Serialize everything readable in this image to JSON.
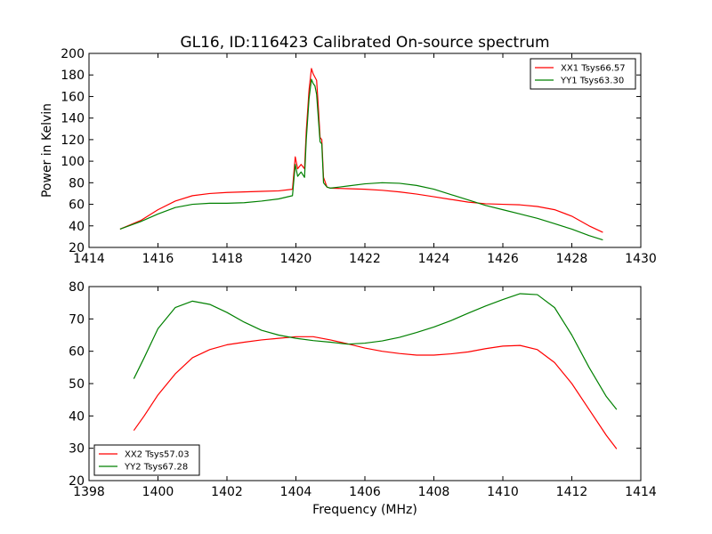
{
  "title": "GL16, ID:116423 Calibrated On-source spectrum",
  "chart_data": [
    {
      "type": "line",
      "title": "GL16, ID:116423 Calibrated On-source spectrum",
      "xlabel": "",
      "ylabel": "Power in Kelvin",
      "xlim": [
        1414,
        1430
      ],
      "ylim": [
        20,
        200
      ],
      "xticks": [
        1414,
        1416,
        1418,
        1420,
        1422,
        1424,
        1426,
        1428,
        1430
      ],
      "yticks": [
        20,
        40,
        60,
        80,
        100,
        120,
        140,
        160,
        180,
        200
      ],
      "grid": false,
      "legend_position": "top-right",
      "series": [
        {
          "name": "XX1 Tsys66.57",
          "color": "#ff0000",
          "x": [
            1414.9,
            1415.5,
            1416.0,
            1416.5,
            1417.0,
            1417.5,
            1418.0,
            1418.5,
            1419.0,
            1419.5,
            1419.9,
            1419.98,
            1420.05,
            1420.15,
            1420.25,
            1420.3,
            1420.38,
            1420.45,
            1420.5,
            1420.55,
            1420.6,
            1420.65,
            1420.7,
            1420.75,
            1420.8,
            1420.9,
            1421.0,
            1421.5,
            1422.0,
            1422.5,
            1423.0,
            1423.5,
            1424.0,
            1424.5,
            1425.0,
            1425.5,
            1426.0,
            1426.5,
            1427.0,
            1427.5,
            1428.0,
            1428.5,
            1428.9
          ],
          "values": [
            37,
            45,
            55,
            63,
            68,
            70,
            71,
            71.5,
            72,
            72.5,
            74,
            104,
            93,
            97,
            93,
            128,
            166,
            186,
            181,
            178,
            175,
            150,
            122,
            120,
            85,
            76,
            75,
            74.5,
            74,
            73,
            71.5,
            69.5,
            67,
            64.5,
            62,
            60.5,
            60,
            59.5,
            58,
            55,
            49,
            40,
            34
          ]
        },
        {
          "name": "YY1 Tsys63.30",
          "color": "#008000",
          "x": [
            1414.9,
            1415.5,
            1416.0,
            1416.5,
            1417.0,
            1417.5,
            1418.0,
            1418.5,
            1419.0,
            1419.5,
            1419.9,
            1419.98,
            1420.05,
            1420.15,
            1420.25,
            1420.3,
            1420.38,
            1420.45,
            1420.5,
            1420.55,
            1420.6,
            1420.65,
            1420.7,
            1420.75,
            1420.8,
            1420.9,
            1421.0,
            1421.5,
            1422.0,
            1422.5,
            1423.0,
            1423.5,
            1424.0,
            1424.5,
            1425.0,
            1425.5,
            1426.0,
            1426.5,
            1427.0,
            1427.5,
            1428.0,
            1428.5,
            1428.9
          ],
          "values": [
            37,
            44,
            51,
            57,
            60,
            61,
            61,
            61.5,
            63,
            65,
            68,
            97,
            86,
            90,
            85,
            120,
            158,
            176,
            172,
            170,
            162,
            140,
            118,
            116,
            80,
            76,
            75,
            77,
            79,
            80,
            79.5,
            77.5,
            74,
            69,
            64,
            59,
            55,
            51,
            47,
            42,
            37,
            31,
            27
          ]
        }
      ]
    },
    {
      "type": "line",
      "title": "",
      "xlabel": "Frequency (MHz)",
      "ylabel": "",
      "xlim": [
        1398,
        1414
      ],
      "ylim": [
        20,
        80
      ],
      "xticks": [
        1398,
        1400,
        1402,
        1404,
        1406,
        1408,
        1410,
        1412,
        1414
      ],
      "yticks": [
        20,
        30,
        40,
        50,
        60,
        70,
        80
      ],
      "grid": false,
      "legend_position": "bottom-left",
      "series": [
        {
          "name": "XX2 Tsys57.03",
          "color": "#ff0000",
          "x": [
            1399.3,
            1399.6,
            1400.0,
            1400.5,
            1401.0,
            1401.5,
            1402.0,
            1402.5,
            1403.0,
            1403.5,
            1404.0,
            1404.5,
            1405.0,
            1405.5,
            1406.0,
            1406.5,
            1407.0,
            1407.5,
            1408.0,
            1408.5,
            1409.0,
            1409.5,
            1410.0,
            1410.5,
            1411.0,
            1411.5,
            1412.0,
            1412.5,
            1413.0,
            1413.3
          ],
          "values": [
            35.5,
            40,
            46.5,
            53,
            58,
            60.5,
            62,
            62.8,
            63.5,
            64,
            64.5,
            64.5,
            63.5,
            62.3,
            61,
            60,
            59.3,
            58.8,
            58.8,
            59.2,
            59.8,
            60.8,
            61.6,
            61.8,
            60.5,
            56.5,
            50,
            42,
            34,
            29.8
          ]
        },
        {
          "name": "YY2 Tsys67.28",
          "color": "#008000",
          "x": [
            1399.3,
            1399.6,
            1400.0,
            1400.5,
            1401.0,
            1401.5,
            1402.0,
            1402.5,
            1403.0,
            1403.5,
            1404.0,
            1404.5,
            1405.0,
            1405.5,
            1406.0,
            1406.5,
            1407.0,
            1407.5,
            1408.0,
            1408.5,
            1409.0,
            1409.5,
            1410.0,
            1410.5,
            1411.0,
            1411.5,
            1412.0,
            1412.5,
            1413.0,
            1413.3
          ],
          "values": [
            51.5,
            58,
            67,
            73.5,
            75.5,
            74.5,
            72,
            69,
            66.5,
            65,
            64,
            63.3,
            62.8,
            62.2,
            62.5,
            63.2,
            64.3,
            65.8,
            67.5,
            69.5,
            71.8,
            74,
            76,
            77.8,
            77.5,
            73.5,
            65,
            55,
            46,
            42
          ]
        }
      ]
    }
  ]
}
